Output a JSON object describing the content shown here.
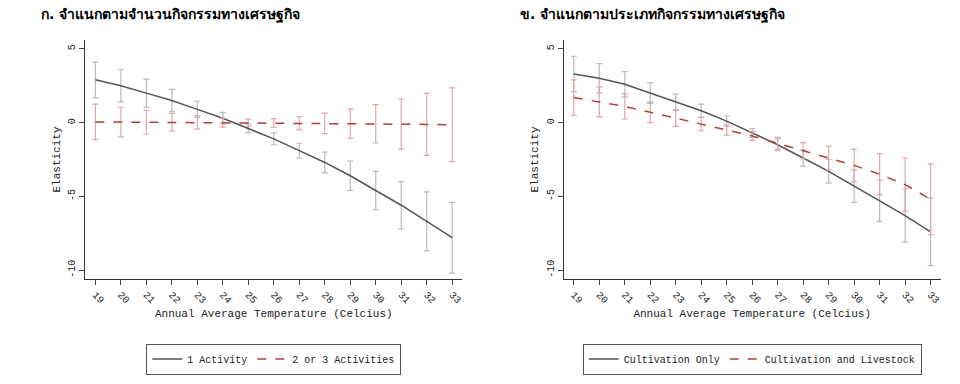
{
  "chart_data": [
    {
      "type": "line",
      "title": "ก. จำแนกตามจำนวนกิจกรรมทางเศรษฐกิจ",
      "x_label": "Annual Average Temperature (Celcius)",
      "y_label": "Elasticity",
      "x": [
        19,
        20,
        21,
        22,
        23,
        24,
        25,
        26,
        27,
        28,
        29,
        30,
        31,
        32,
        33
      ],
      "xlim": [
        18.6,
        33.4
      ],
      "xticks": [
        19,
        20,
        21,
        22,
        23,
        24,
        25,
        26,
        27,
        28,
        29,
        30,
        31,
        32,
        33
      ],
      "ylim": [
        -10.6,
        5.6
      ],
      "yticks": [
        -10,
        -5,
        0,
        5
      ],
      "grid": false,
      "legend": "bottom",
      "series": [
        {
          "name": "1 Activity",
          "color": "#555555",
          "line_style": "solid",
          "values": [
            2.9,
            2.5,
            2.0,
            1.5,
            0.9,
            0.3,
            -0.4,
            -1.1,
            -1.9,
            -2.7,
            -3.6,
            -4.6,
            -5.6,
            -6.7,
            -7.8
          ],
          "error": [
            1.2,
            1.1,
            0.95,
            0.75,
            0.55,
            0.4,
            0.3,
            0.4,
            0.5,
            0.7,
            1.0,
            1.3,
            1.6,
            2.0,
            2.4
          ]
        },
        {
          "name": "2 or 3 Activities",
          "color": "#b0413e",
          "line_style": "dash",
          "values": [
            0.05,
            0.04,
            0.03,
            0.02,
            0.01,
            0,
            -0.01,
            -0.03,
            -0.04,
            -0.05,
            -0.07,
            -0.08,
            -0.1,
            -0.12,
            -0.15
          ],
          "error": [
            1.2,
            1.0,
            0.8,
            0.6,
            0.45,
            0.3,
            0.25,
            0.3,
            0.45,
            0.7,
            1.0,
            1.3,
            1.7,
            2.1,
            2.5
          ]
        }
      ]
    },
    {
      "type": "line",
      "title": "ข. จำแนกตามประเภทกิจกรรมทางเศรษฐกิจ",
      "x_label": "Annual Average Temperature (Celcius)",
      "y_label": "Elasticity",
      "x": [
        19,
        20,
        21,
        22,
        23,
        24,
        25,
        26,
        27,
        28,
        29,
        30,
        31,
        32,
        33
      ],
      "xlim": [
        18.6,
        33.4
      ],
      "xticks": [
        19,
        20,
        21,
        22,
        23,
        24,
        25,
        26,
        27,
        28,
        29,
        30,
        31,
        32,
        33
      ],
      "ylim": [
        -10.6,
        5.6
      ],
      "yticks": [
        -10,
        -5,
        0,
        5
      ],
      "grid": false,
      "legend": "bottom",
      "series": [
        {
          "name": "Cultivation Only",
          "color": "#555555",
          "line_style": "solid",
          "values": [
            3.3,
            3.0,
            2.6,
            2.0,
            1.4,
            0.8,
            0.1,
            -0.7,
            -1.5,
            -2.4,
            -3.3,
            -4.3,
            -5.3,
            -6.3,
            -7.4
          ],
          "error": [
            1.2,
            1.0,
            0.85,
            0.7,
            0.55,
            0.45,
            0.35,
            0.3,
            0.4,
            0.55,
            0.8,
            1.1,
            1.4,
            1.8,
            2.3
          ]
        },
        {
          "name": "Cultivation and Livestock",
          "color": "#b0413e",
          "line_style": "dash",
          "values": [
            1.7,
            1.4,
            1.1,
            0.7,
            0.3,
            -0.1,
            -0.5,
            -0.9,
            -1.4,
            -1.9,
            -2.4,
            -2.9,
            -3.5,
            -4.2,
            -5.2
          ],
          "error": [
            1.2,
            1.0,
            0.85,
            0.7,
            0.55,
            0.45,
            0.35,
            0.3,
            0.4,
            0.55,
            0.8,
            1.1,
            1.4,
            1.8,
            2.4
          ]
        }
      ]
    }
  ]
}
